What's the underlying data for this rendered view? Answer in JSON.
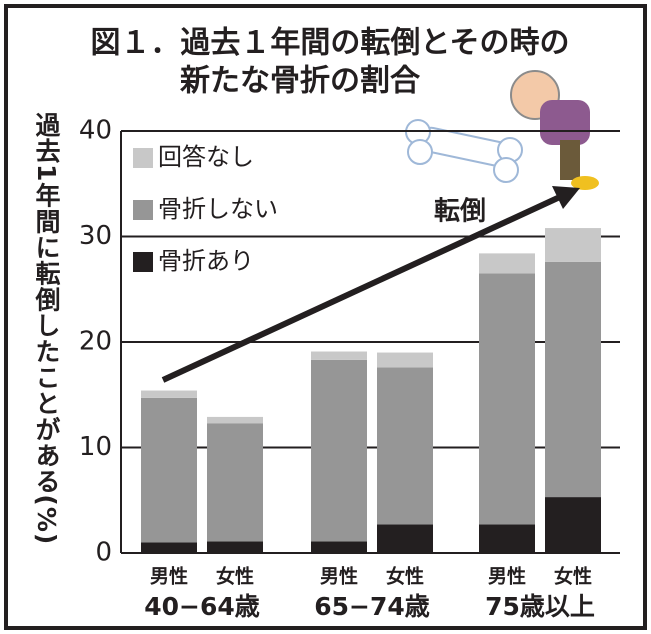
{
  "chart_data": {
    "type": "stacked-bar",
    "title": [
      "図１．過去１年間の転倒とその時の",
      "新たな骨折の割合"
    ],
    "y_label": "過去1年間に転倒したことがある(%)",
    "annotation": "転倒",
    "categories": [
      "男性",
      "女性",
      "男性",
      "女性",
      "男性",
      "女性"
    ],
    "groups": [
      "40−64歳",
      "65−74歳",
      "75歳以上"
    ],
    "series": [
      {
        "name": "骨折あり",
        "color": "#231f20",
        "values": [
          1.0,
          1.1,
          1.1,
          2.7,
          2.7,
          5.3
        ]
      },
      {
        "name": "骨折しない",
        "color": "#969696",
        "values": [
          13.7,
          11.2,
          17.2,
          14.9,
          23.8,
          22.3
        ]
      },
      {
        "name": "回答なし",
        "color": "#c8c8c8",
        "values": [
          0.7,
          0.6,
          0.8,
          1.4,
          1.9,
          3.2
        ]
      }
    ],
    "ylim": [
      0,
      40
    ],
    "yticks": [
      0,
      10,
      20,
      30,
      40
    ],
    "grid": true
  }
}
